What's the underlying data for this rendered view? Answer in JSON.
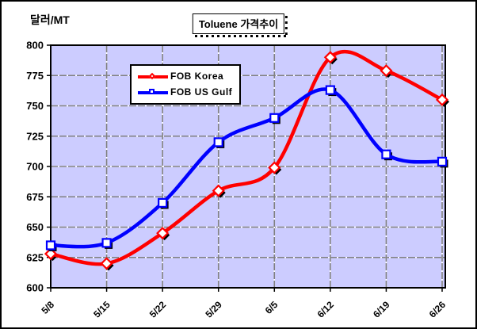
{
  "window_title": "Toluene 가격추이",
  "y_axis_unit": "달러/MT",
  "colors": {
    "plot_background": "#CCCCFF",
    "gridline": "#808080",
    "axis": "#000000",
    "fob_korea": "#FF0000",
    "fob_us_gulf": "#0000FF",
    "marker_fill": "#FFFFFF",
    "shadow": "#000000"
  },
  "legend": {
    "items": [
      {
        "label": "FOB Korea",
        "marker": "diamond"
      },
      {
        "label": "FOB US Gulf",
        "marker": "square"
      }
    ]
  },
  "chart_data": {
    "type": "line",
    "title": "Toluene 가격추이",
    "ylabel": "달러/MT",
    "xlabel": "",
    "categories": [
      "5/8",
      "5/15",
      "5/22",
      "5/29",
      "6/5",
      "6/12",
      "6/19",
      "6/26"
    ],
    "series": [
      {
        "name": "FOB Korea",
        "color": "#FF0000",
        "marker": "diamond",
        "values": [
          628,
          620,
          645,
          680,
          699,
          790,
          779,
          755
        ]
      },
      {
        "name": "FOB US Gulf",
        "color": "#0000FF",
        "marker": "square",
        "values": [
          635,
          637,
          670,
          720,
          740,
          763,
          710,
          704
        ]
      }
    ],
    "ylim": [
      600,
      800
    ],
    "ytick_step": 25,
    "grid": true,
    "smoothed_lines": true,
    "legend_position": "inside-top-left",
    "x_tick_label_rotation_deg": -45
  }
}
